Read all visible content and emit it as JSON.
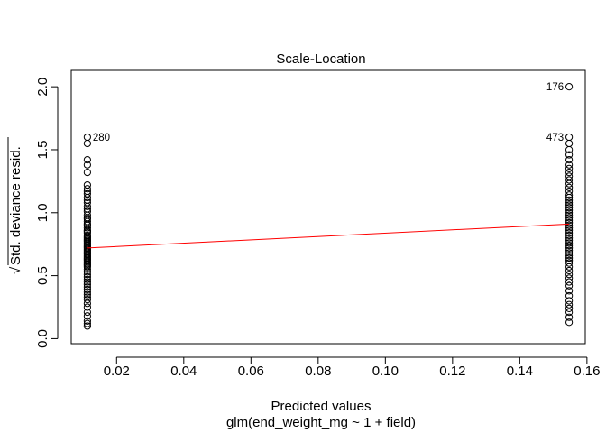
{
  "chart_data": {
    "type": "scatter",
    "title": "Scale-Location",
    "xlabel": "Predicted values",
    "xsublabel": "glm(end_weight_mg ~ 1 + field)",
    "ylabel_radical": "√",
    "ylabel": "Std. deviance resid.",
    "xlim": [
      0.0065,
      0.1595
    ],
    "ylim": [
      -0.04,
      2.13
    ],
    "x_ticks": [
      0.02,
      0.04,
      0.06,
      0.08,
      0.1,
      0.12,
      0.14,
      0.16
    ],
    "x_tick_labels": [
      "0.02",
      "0.04",
      "0.06",
      "0.08",
      "0.10",
      "0.12",
      "0.14",
      "0.16"
    ],
    "y_ticks": [
      0.0,
      0.5,
      1.0,
      1.5,
      2.0
    ],
    "y_tick_labels": [
      "0.0",
      "0.5",
      "1.0",
      "1.5",
      "2.0"
    ],
    "grid": false,
    "series": [
      {
        "group_x": 0.0113,
        "values": [
          1.6,
          1.55,
          1.42,
          1.38,
          1.32,
          1.22,
          1.19,
          1.17,
          1.15,
          1.12,
          1.1,
          1.08,
          1.05,
          1.03,
          1.01,
          0.98,
          0.96,
          0.95,
          0.93,
          0.91,
          0.9,
          0.88,
          0.86,
          0.85,
          0.84,
          0.82,
          0.81,
          0.8,
          0.79,
          0.78,
          0.77,
          0.76,
          0.75,
          0.74,
          0.73,
          0.72,
          0.71,
          0.7,
          0.69,
          0.68,
          0.67,
          0.66,
          0.65,
          0.64,
          0.63,
          0.62,
          0.61,
          0.6,
          0.59,
          0.58,
          0.57,
          0.55,
          0.53,
          0.51,
          0.49,
          0.47,
          0.45,
          0.43,
          0.41,
          0.39,
          0.37,
          0.35,
          0.33,
          0.31,
          0.28,
          0.25,
          0.21,
          0.18,
          0.14,
          0.12,
          0.1
        ]
      },
      {
        "group_x": 0.1547,
        "values": [
          2.0,
          1.6,
          1.55,
          1.5,
          1.46,
          1.42,
          1.38,
          1.35,
          1.32,
          1.29,
          1.26,
          1.23,
          1.2,
          1.17,
          1.14,
          1.12,
          1.1,
          1.08,
          1.06,
          1.04,
          1.02,
          1.0,
          0.98,
          0.96,
          0.94,
          0.92,
          0.9,
          0.88,
          0.86,
          0.84,
          0.82,
          0.8,
          0.78,
          0.76,
          0.74,
          0.72,
          0.7,
          0.68,
          0.66,
          0.64,
          0.62,
          0.6,
          0.57,
          0.54,
          0.51,
          0.48,
          0.45,
          0.42,
          0.38,
          0.34,
          0.3,
          0.27,
          0.24,
          0.21,
          0.17,
          0.13
        ]
      }
    ],
    "smoother": {
      "color": "#ff0000",
      "x": [
        0.0113,
        0.1547
      ],
      "y": [
        0.72,
        0.91
      ]
    },
    "annotations": [
      {
        "text": "280",
        "x": 0.0113,
        "y": 1.6,
        "side": "right"
      },
      {
        "text": "473",
        "x": 0.1547,
        "y": 1.6,
        "side": "left"
      },
      {
        "text": "176",
        "x": 0.1547,
        "y": 2.0,
        "side": "left"
      }
    ]
  }
}
